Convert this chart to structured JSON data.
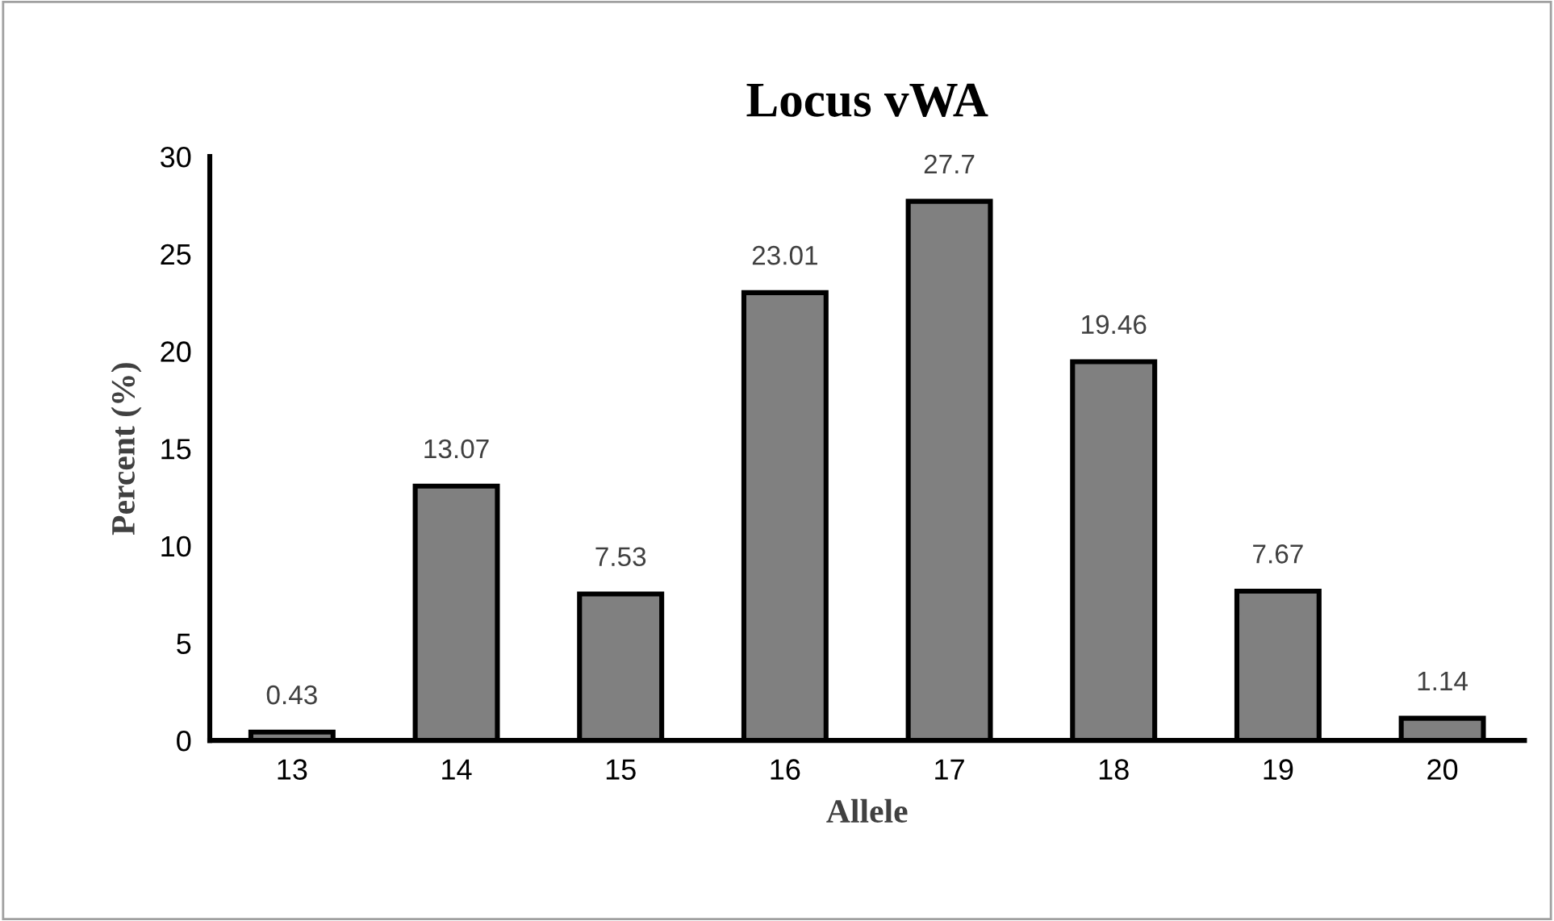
{
  "chart_data": {
    "type": "bar",
    "title": "Locus vWA",
    "xlabel": "Allele",
    "ylabel": "Percent (%)",
    "categories": [
      "13",
      "14",
      "15",
      "16",
      "17",
      "18",
      "19",
      "20"
    ],
    "values": [
      0.43,
      13.07,
      7.53,
      23.01,
      27.7,
      19.46,
      7.67,
      1.14
    ],
    "color": "#808080",
    "ylim": [
      0,
      30
    ],
    "yticks": [
      0,
      5,
      10,
      15,
      20,
      25,
      30
    ],
    "grid": false,
    "data_labels": true
  }
}
